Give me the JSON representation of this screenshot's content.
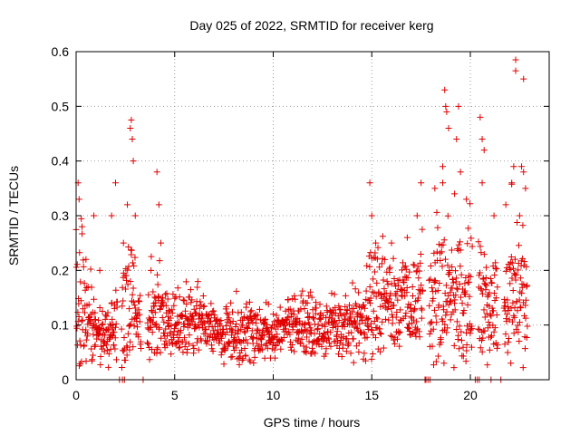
{
  "chart_data": {
    "type": "scatter",
    "title": "Day 025 of 2022, SRMTID for receiver kerg",
    "xlabel": "GPS time / hours",
    "ylabel": "SRMTID / TECUs",
    "xlim": [
      0,
      24
    ],
    "ylim": [
      0,
      0.6
    ],
    "x_ticks": [
      0,
      5,
      10,
      15,
      20
    ],
    "x_tick_labels": [
      "0",
      "5",
      "10",
      "15",
      "20"
    ],
    "y_ticks": [
      0,
      0.1,
      0.2,
      0.3,
      0.4,
      0.5,
      0.6
    ],
    "y_tick_labels": [
      "0",
      "0.1",
      "0.2",
      "0.3",
      "0.4",
      "0.5",
      "0.6"
    ],
    "grid": true,
    "marker": "+",
    "color": "#e00000",
    "series": [
      {
        "name": "SRMTID",
        "envelope": {
          "x": [
            0,
            0.5,
            1,
            1.5,
            2,
            2.5,
            2.8,
            3.2,
            3.6,
            4.2,
            4.6,
            5,
            6,
            7,
            8,
            9,
            10,
            11,
            12,
            13,
            14,
            14.5,
            15,
            15.5,
            16,
            16.5,
            17,
            17.5,
            18,
            18.5,
            19,
            19.5,
            20,
            20.5,
            21,
            21.5,
            22,
            22.5,
            22.9
          ],
          "median": [
            0.15,
            0.12,
            0.09,
            0.08,
            0.1,
            0.12,
            0.15,
            0.11,
            0.1,
            0.12,
            0.1,
            0.1,
            0.1,
            0.09,
            0.08,
            0.085,
            0.085,
            0.1,
            0.1,
            0.095,
            0.09,
            0.1,
            0.14,
            0.15,
            0.14,
            0.14,
            0.13,
            0.14,
            0.13,
            0.15,
            0.15,
            0.15,
            0.14,
            0.13,
            0.12,
            0.12,
            0.15,
            0.18,
            0.12
          ],
          "spread": [
            0.09,
            0.07,
            0.04,
            0.03,
            0.05,
            0.07,
            0.1,
            0.05,
            0.05,
            0.07,
            0.04,
            0.04,
            0.04,
            0.035,
            0.035,
            0.035,
            0.035,
            0.04,
            0.04,
            0.04,
            0.04,
            0.05,
            0.08,
            0.07,
            0.06,
            0.06,
            0.06,
            0.08,
            0.07,
            0.1,
            0.1,
            0.09,
            0.08,
            0.08,
            0.06,
            0.06,
            0.09,
            0.1,
            0.07
          ],
          "gaps": [
            [
              2.1,
              2.3
            ],
            [
              3.3,
              3.6
            ],
            [
              17.6,
              17.9
            ],
            [
              20.1,
              20.4
            ],
            [
              21.4,
              21.7
            ]
          ]
        },
        "points": [
          [
            0.1,
            0.36
          ],
          [
            0.15,
            0.33
          ],
          [
            0.3,
            0.28
          ],
          [
            0.5,
            0.22
          ],
          [
            0.9,
            0.3
          ],
          [
            1.2,
            0.2
          ],
          [
            1.8,
            0.3
          ],
          [
            2.0,
            0.36
          ],
          [
            2.4,
            0.25
          ],
          [
            2.6,
            0.32
          ],
          [
            2.75,
            0.46
          ],
          [
            2.8,
            0.475
          ],
          [
            2.85,
            0.44
          ],
          [
            2.9,
            0.4
          ],
          [
            3.0,
            0.3
          ],
          [
            3.8,
            0.2
          ],
          [
            4.1,
            0.38
          ],
          [
            4.2,
            0.32
          ],
          [
            4.3,
            0.25
          ],
          [
            14.9,
            0.36
          ],
          [
            15.0,
            0.3
          ],
          [
            15.2,
            0.25
          ],
          [
            16.0,
            0.25
          ],
          [
            16.8,
            0.26
          ],
          [
            17.5,
            0.36
          ],
          [
            17.3,
            0.3
          ],
          [
            18.2,
            0.35
          ],
          [
            18.6,
            0.39
          ],
          [
            18.7,
            0.53
          ],
          [
            18.75,
            0.5
          ],
          [
            18.8,
            0.49
          ],
          [
            18.9,
            0.46
          ],
          [
            18.6,
            0.36
          ],
          [
            19.2,
            0.34
          ],
          [
            19.3,
            0.44
          ],
          [
            19.4,
            0.5
          ],
          [
            19.5,
            0.38
          ],
          [
            19.8,
            0.33
          ],
          [
            20.5,
            0.48
          ],
          [
            20.6,
            0.44
          ],
          [
            20.7,
            0.42
          ],
          [
            20.6,
            0.36
          ],
          [
            21.2,
            0.3
          ],
          [
            21.8,
            0.32
          ],
          [
            22.1,
            0.36
          ],
          [
            22.2,
            0.39
          ],
          [
            22.3,
            0.585
          ],
          [
            22.3,
            0.565
          ],
          [
            22.7,
            0.55
          ],
          [
            22.6,
            0.39
          ],
          [
            22.7,
            0.38
          ],
          [
            22.8,
            0.35
          ],
          [
            22.5,
            0.3
          ]
        ],
        "zero_values_at_x": [
          2.2,
          2.35,
          2.45,
          3.4,
          17.7,
          17.75,
          17.85,
          17.95,
          20.25,
          20.35,
          20.45,
          21.05,
          21.55
        ]
      }
    ]
  }
}
